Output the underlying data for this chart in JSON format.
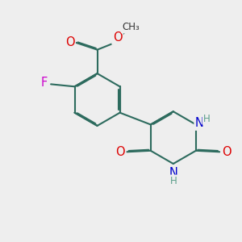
{
  "background_color": "#eeeeee",
  "bond_color": "#2d6b5e",
  "bond_width": 1.5,
  "dbo": 0.04,
  "atom_colors": {
    "O": "#dd0000",
    "N": "#0000cc",
    "F": "#cc00cc",
    "H": "#5a9e8a"
  },
  "font_size_atom": 10.5,
  "font_size_small": 8.5
}
